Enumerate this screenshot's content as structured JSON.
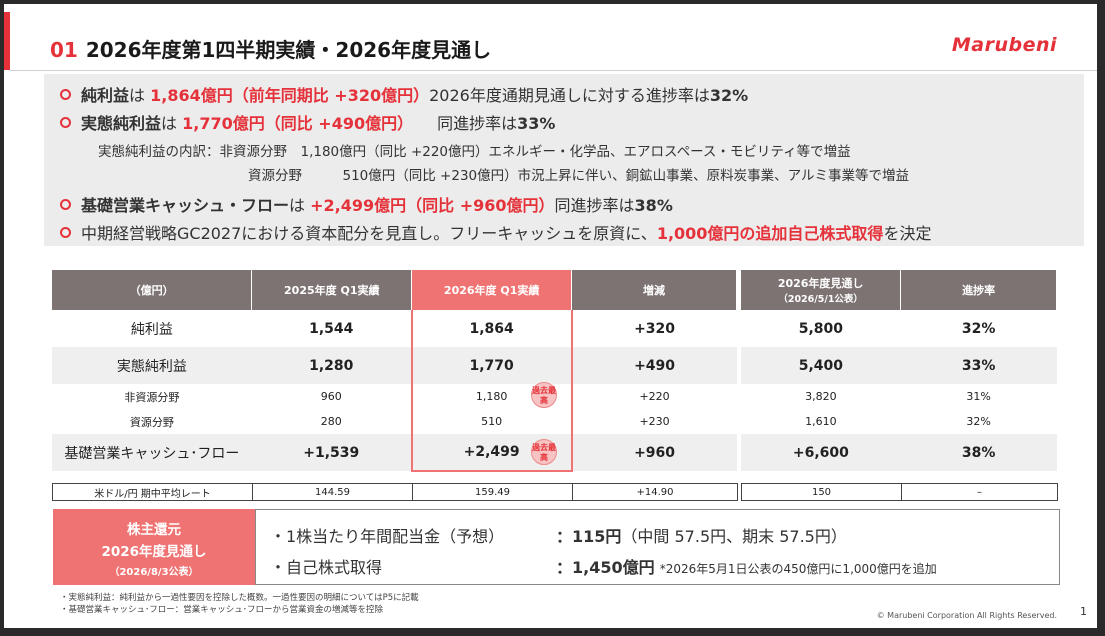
{
  "header": {
    "number": "01",
    "title": "2026年度第1四半期実績・2026年度見通し",
    "logo": "Marubeni"
  },
  "summary": {
    "line1": {
      "label": "純利益",
      "mid": "は",
      "value": "1,864億円（前年同期比 +320億円）",
      "rest": "2026年度通期見通しに対する進捗率は",
      "pct": "32%"
    },
    "line2": {
      "label": "実態純利益",
      "mid": "は",
      "value": "1,770億円（同比 +490億円）",
      "rest": "同進捗率は",
      "pct": "33%"
    },
    "sub1": "実態純利益の内訳：非資源分野　1,180億円（同比 +220億円）エネルギー・化学品、エアロスペース・モビリティ等で増益",
    "sub2": "資源分野　　　510億円（同比 +230億円）市況上昇に伴い、銅鉱山事業、原料炭事業、アルミ事業等で増益",
    "line3": {
      "label": "基礎営業キャッシュ・フロー",
      "mid": "は",
      "value": "+2,499億円（同比 +960億円）",
      "rest": "同進捗率は",
      "pct": "38%"
    },
    "line4": {
      "pre": "中期経営戦略GC2027における資本配分を見直し。フリーキャッシュを原資に、",
      "value": "1,000億円の追加自己株式取得",
      "post": "を決定"
    }
  },
  "table": {
    "headers": [
      "（億円）",
      "2025年度 Q1実績",
      "2026年度 Q1実績",
      "増減"
    ],
    "headers_right": {
      "forecast": "2026年度見通し",
      "forecast_sub": "（2026/5/1公表）",
      "progress": "進捗率"
    },
    "rows": [
      {
        "label": "純利益",
        "q1_2025": "1,544",
        "q1_2026": "1,864",
        "diff": "+320",
        "forecast": "5,800",
        "progress": "32%"
      },
      {
        "label": "実態純利益",
        "q1_2025": "1,280",
        "q1_2026": "1,770",
        "diff": "+490",
        "forecast": "5,400",
        "progress": "33%"
      },
      {
        "label": "非資源分野",
        "q1_2025": "960",
        "q1_2026": "1,180",
        "diff": "+220",
        "forecast": "3,820",
        "progress": "31%"
      },
      {
        "label": "資源分野",
        "q1_2025": "280",
        "q1_2026": "510",
        "diff": "+230",
        "forecast": "1,610",
        "progress": "32%"
      },
      {
        "label": "基礎営業キャッシュ･フロー",
        "q1_2025": "+1,539",
        "q1_2026": "+2,499",
        "diff": "+960",
        "forecast": "+6,600",
        "progress": "38%"
      }
    ],
    "badge": "過去最高",
    "rate": {
      "label": "米ドル/円 期中平均レート",
      "q1_2025": "144.59",
      "q1_2026": "159.49",
      "diff": "+14.90",
      "forecast": "150",
      "progress": "–"
    }
  },
  "shareholder": {
    "l1": "株主還元",
    "l2": "2026年度見通し",
    "l3": "（2026/8/3公表）",
    "item1": "・1株当たり年間配当金（予想）",
    "val1_main": "：115円",
    "val1_detail": "（中間 57.5円、期末 57.5円）",
    "item2": "・自己株式取得",
    "val2_main": "：1,450億円",
    "val2_note": "*2026年5月1日公表の450億円に1,000億円を追加"
  },
  "footnotes": [
    "・実態純利益：純利益から一過性要因を控除した概数。一過性要因の明細についてはP5に記載",
    "・基礎営業キャッシュ･フロー：営業キャッシュ･フローから営業資金の増減等を控除"
  ],
  "copyright": "© Marubeni Corporation All Rights Reserved.",
  "page": "1",
  "colors": {
    "accent": "#e5323a",
    "header_gray": "#7d7373",
    "highlight": "#f07373"
  }
}
